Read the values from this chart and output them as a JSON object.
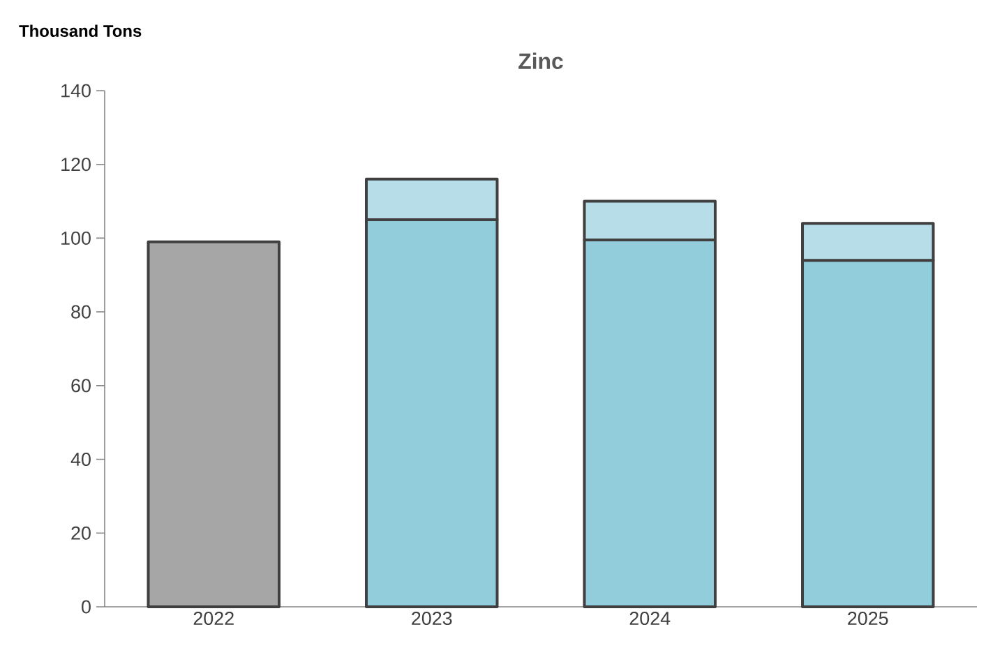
{
  "chart_data": {
    "type": "bar",
    "title": "Zinc",
    "ylabel": "Thousand Tons",
    "categories": [
      "2022",
      "2023",
      "2024",
      "2025"
    ],
    "stacked": true,
    "series": [
      {
        "colors": [
          "#a6a6a6",
          "#92cddc",
          "#92cddc",
          "#92cddc"
        ],
        "values": [
          99,
          105,
          99.5,
          94
        ]
      },
      {
        "color": "#b7dee8",
        "values": [
          null,
          11,
          10.5,
          10
        ]
      }
    ],
    "ylim": [
      0,
      140
    ],
    "yticks": [
      0,
      20,
      40,
      60,
      80,
      100,
      120,
      140
    ],
    "grid": false
  }
}
